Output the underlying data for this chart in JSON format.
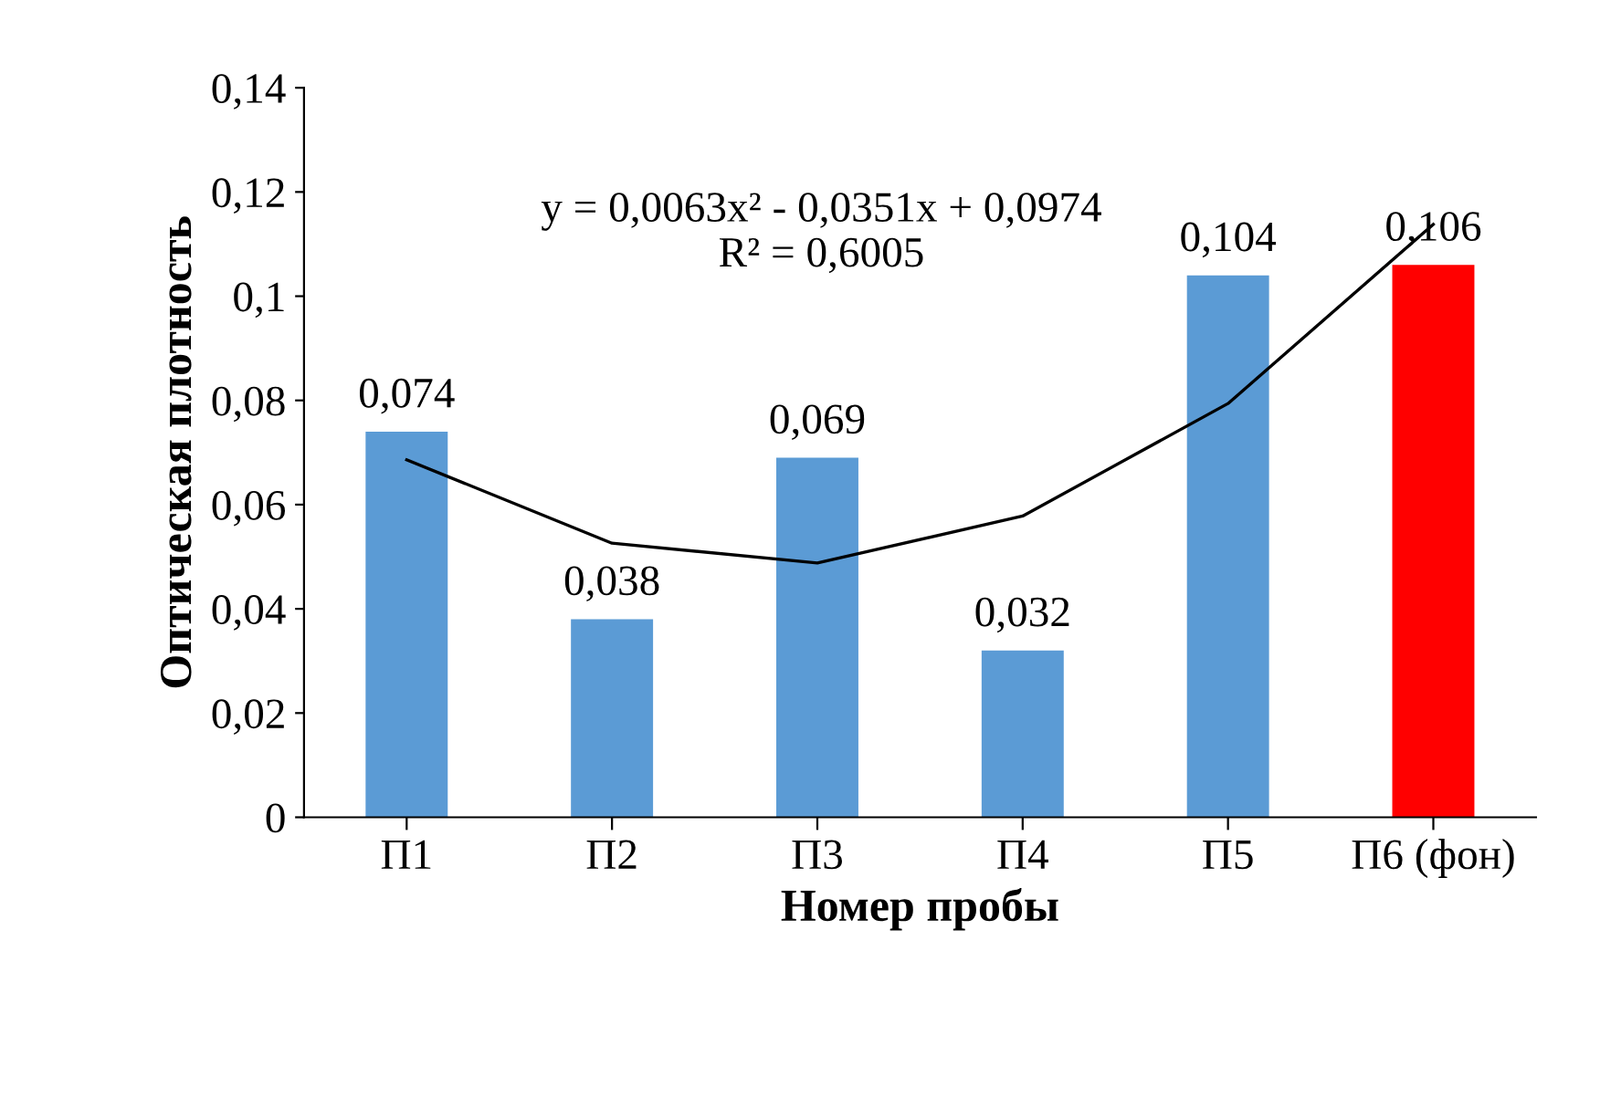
{
  "chart_data": {
    "type": "bar",
    "xlabel": "Номер пробы",
    "ylabel": "Оптическая плотность",
    "categories": [
      "П1",
      "П2",
      "П3",
      "П4",
      "П5",
      "П6 (фон)"
    ],
    "series": [
      {
        "colors": [
          "#5b9bd5",
          "#5b9bd5",
          "#5b9bd5",
          "#5b9bd5",
          "#5b9bd5",
          "#ff0000"
        ],
        "values": [
          0.074,
          0.038,
          0.069,
          0.032,
          0.104,
          0.106
        ],
        "value_labels": [
          "0,074",
          "0,038",
          "0,069",
          "0,032",
          "0,104",
          "0,106"
        ]
      },
      {
        "type": "line",
        "color": "#000000",
        "values": [
          0.0686,
          0.0526,
          0.0488,
          0.0578,
          0.0794,
          0.1138
        ]
      }
    ],
    "ylim": [
      0,
      0.14
    ],
    "yticks": [
      0,
      {
        "value": 0.02,
        "label": "0,02"
      },
      {
        "value": 0.04,
        "label": "0,04"
      },
      {
        "value": 0.06,
        "label": "0,06"
      },
      {
        "value": 0.08,
        "label": "0,08"
      },
      {
        "value": 0.1,
        "label": "0,1"
      },
      {
        "value": 0.12,
        "label": "0,12"
      },
      {
        "value": 0.14,
        "label": "0,14"
      }
    ],
    "annotations": [
      "y = 0,0063x² - 0,0351x + 0,0974\nR² = 0,6005"
    ],
    "legend": false,
    "grid": false
  }
}
